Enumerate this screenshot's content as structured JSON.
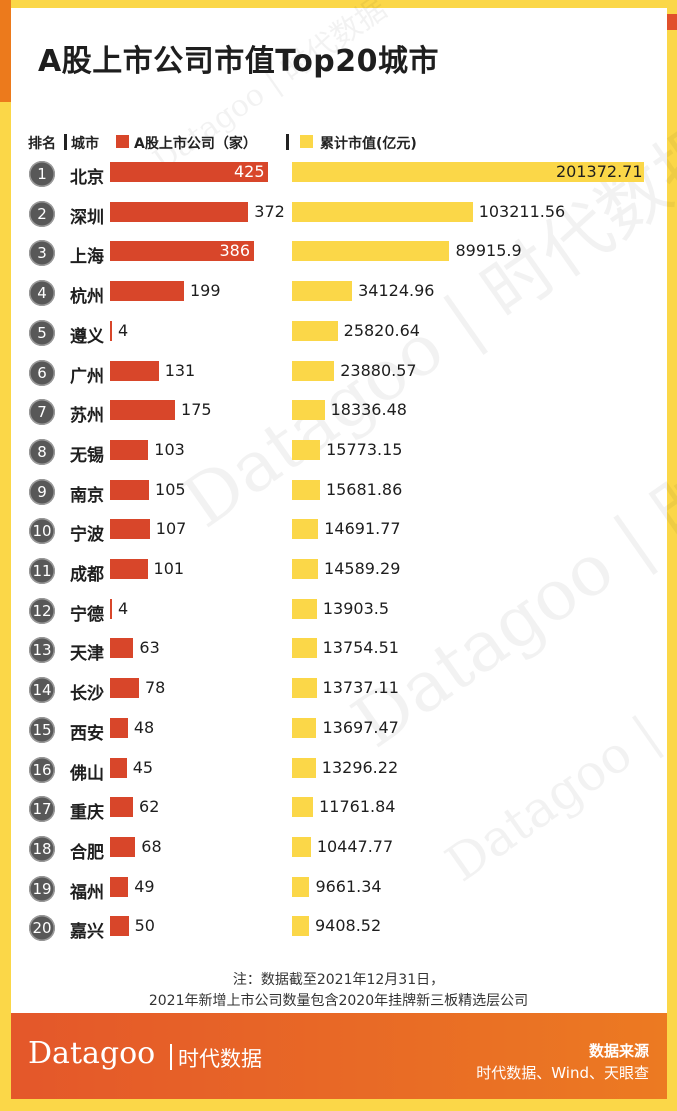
{
  "title": "A股上市公司市值Top20城市",
  "headers": {
    "rank": "排名",
    "city": "城市",
    "count_legend": "A股上市公司（家）",
    "value_legend": "累计市值(亿元)"
  },
  "watermark": {
    "brand": "Datagoo",
    "cn": "时代数据"
  },
  "notes": {
    "line1": "注：数据截至2021年12月31日，",
    "line2": "2021年新增上市公司数量包含2020年挂牌新三板精选层公司"
  },
  "footer": {
    "brand": "Datagoo",
    "brand_cn": "时代数据",
    "source_title": "数据来源",
    "source_list": "时代数据、Wind、天眼查"
  },
  "colors": {
    "count_bar": "#d8462a",
    "value_bar": "#fbd748",
    "footer": "#e4572a"
  },
  "chart_data": {
    "type": "bar",
    "title": "A股上市公司市值Top20城市",
    "categories": [
      "北京",
      "深圳",
      "上海",
      "杭州",
      "遵义",
      "广州",
      "苏州",
      "无锡",
      "南京",
      "宁波",
      "成都",
      "宁德",
      "天津",
      "长沙",
      "西安",
      "佛山",
      "重庆",
      "合肥",
      "福州",
      "嘉兴"
    ],
    "ranks": [
      "1",
      "2",
      "3",
      "4",
      "5",
      "6",
      "7",
      "8",
      "9",
      "10",
      "11",
      "12",
      "13",
      "14",
      "15",
      "16",
      "17",
      "18",
      "19",
      "20"
    ],
    "series": [
      {
        "name": "A股上市公司（家）",
        "values": [
          425,
          372,
          386,
          199,
          4,
          131,
          175,
          103,
          105,
          107,
          101,
          4,
          63,
          78,
          48,
          45,
          62,
          68,
          49,
          50
        ]
      },
      {
        "name": "累计市值(亿元)",
        "values": [
          201372.71,
          103211.56,
          89915.9,
          34124.96,
          25820.64,
          23880.57,
          18336.48,
          15773.15,
          15681.86,
          14691.77,
          14589.29,
          13903.5,
          13754.51,
          13737.11,
          13697.47,
          13296.22,
          11761.84,
          10447.77,
          9661.34,
          9408.52
        ]
      }
    ],
    "value_labels": [
      "201372.71",
      "103211.56",
      "89915.9",
      "34124.96",
      "25820.64",
      "23880.57",
      "18336.48",
      "15773.15",
      "15681.86",
      "14691.77",
      "14589.29",
      "13903.5",
      "13754.51",
      "13737.11",
      "13697.47",
      "13296.22",
      "11761.84",
      "10447.77",
      "9661.34",
      "9408.52"
    ],
    "count_labels": [
      "425",
      "372",
      "386",
      "199",
      "4",
      "131",
      "175",
      "103",
      "105",
      "107",
      "101",
      "4",
      "63",
      "78",
      "48",
      "45",
      "62",
      "68",
      "49",
      "50"
    ],
    "legend": "top"
  }
}
